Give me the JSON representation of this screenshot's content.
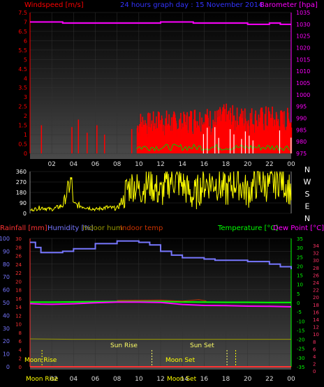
{
  "header": {
    "left_label": "Windspeed [m/s]",
    "title": "24 hours graph day : 15 November 2014",
    "right_label": "Barometer [hpa]"
  },
  "colors": {
    "wind_axis": "#ff0000",
    "baro_axis": "#ff00ff",
    "title": "#3333ff",
    "dir_line": "#ffff00",
    "rain": "#ff3333",
    "humidity": "#7777ff",
    "indoor_hum": "#999900",
    "indoor_temp": "#cc3300",
    "temperature": "#00ff00",
    "dew_point": "#ff00ff",
    "sun": "#ffff66",
    "moon": "#ffff00"
  },
  "x_axis": {
    "ticks": [
      "02",
      "04",
      "06",
      "08",
      "10",
      "12",
      "14",
      "16",
      "18",
      "20",
      "22",
      "00"
    ]
  },
  "panel1": {
    "wind_ticks": [
      "7.5",
      "7",
      "6.5",
      "6",
      "5.5",
      "5",
      "4.5",
      "4",
      "3.5",
      "3",
      "2.5",
      "2",
      "1.5",
      "1",
      "0.5",
      "0"
    ],
    "baro_ticks": [
      "1035",
      "1030",
      "1025",
      "1020",
      "1015",
      "1010",
      "1005",
      "1000",
      "995",
      "990",
      "985",
      "980",
      "975"
    ]
  },
  "panel2": {
    "dir_ticks": [
      "360",
      "270",
      "180",
      "90",
      "0"
    ],
    "compass": [
      "N",
      "W",
      "S",
      "E",
      "N"
    ]
  },
  "panel3": {
    "legend": {
      "rain": "Rainfall [mm]",
      "humidity": "Humidity [%]",
      "indoor_hum": "Indoor hum",
      "indoor_temp": "Indoor temp",
      "temperature": "Temperature [°C]",
      "dew_point": "Dew Point [°C]"
    },
    "left_ticks": [
      "100",
      "90",
      "80",
      "70",
      "60",
      "50",
      "40",
      "30",
      "20",
      "10",
      "0"
    ],
    "rain_ticks": [
      "30",
      "28",
      "26",
      "24",
      "22",
      "20",
      "18",
      "16",
      "14",
      "12",
      "10",
      "8",
      "6",
      "4",
      "2",
      "0"
    ],
    "temp_ticks": [
      "35",
      "30",
      "25",
      "20",
      "15",
      "10",
      "5",
      "0",
      "-5",
      "-10",
      "-15",
      "-20",
      "-25",
      "-30",
      "-35"
    ],
    "dew_ticks": [
      "34",
      "32",
      "30",
      "28",
      "26",
      "24",
      "22",
      "20",
      "18",
      "16",
      "14",
      "12",
      "10",
      "8",
      "6",
      "4",
      "2",
      "0"
    ],
    "annotations": {
      "moon_rise": "Moon Rise",
      "sun_rise": "Sun Rise",
      "moon_set": "Moon Set",
      "sun_set": "Sun Set",
      "moon_rise_axis": "Moon Rise",
      "moon_set_axis": "Moon Set"
    }
  },
  "chart_data": [
    {
      "type": "area",
      "title": "24 hours graph day : 15 November 2014",
      "ylabel": "Windspeed [m/s]",
      "y2label": "Barometer [hpa]",
      "xlim_hours": [
        0,
        24
      ],
      "ylim": [
        0,
        7.5
      ],
      "y2lim": [
        975,
        1035
      ],
      "series": [
        {
          "name": "Windspeed [m/s]",
          "hours": [
            1.0,
            3.8,
            4.4,
            5.2,
            6.1,
            6.8,
            9.3,
            10.0,
            11.0,
            12.0,
            13.0,
            14.0,
            15.0,
            16.0,
            17.0,
            18.0,
            19.0,
            20.0,
            21.0,
            22.0,
            23.0,
            24.0
          ],
          "values": [
            1.5,
            1.4,
            1.8,
            1.1,
            1.5,
            1.0,
            1.3,
            2.3,
            2.2,
            2.4,
            2.3,
            2.2,
            2.6,
            2.5,
            2.4,
            2.7,
            2.5,
            2.6,
            2.5,
            2.6,
            2.4,
            2.5
          ]
        },
        {
          "name": "Barometer [hpa]",
          "hours": [
            0,
            1,
            2,
            3,
            4,
            5,
            6,
            7,
            8,
            9,
            10,
            11,
            12,
            13,
            14,
            15,
            16,
            17,
            18,
            19,
            20,
            21,
            22,
            23,
            24
          ],
          "values": [
            1031,
            1031,
            1031,
            1030.5,
            1030.5,
            1030.5,
            1030.5,
            1030.5,
            1030.5,
            1030.5,
            1030.5,
            1030.5,
            1031,
            1031,
            1031,
            1030.5,
            1030.5,
            1030.5,
            1030.5,
            1030.5,
            1030,
            1030,
            1030.5,
            1030,
            1030
          ]
        }
      ]
    },
    {
      "type": "line",
      "ylim": [
        0,
        360
      ],
      "y_axis_labels": [
        "N",
        "W",
        "S",
        "E",
        "N"
      ],
      "series": [
        {
          "name": "Wind direction",
          "hours": [
            0,
            1,
            2,
            3,
            3.8,
            4,
            5,
            6,
            7,
            8,
            8.6,
            9,
            9.5,
            10,
            11,
            12,
            13,
            14,
            15,
            16,
            17,
            18,
            19,
            20,
            21,
            22,
            23,
            24
          ],
          "values": [
            30,
            60,
            40,
            80,
            340,
            90,
            70,
            40,
            60,
            50,
            150,
            220,
            250,
            200,
            260,
            170,
            300,
            250,
            140,
            260,
            270,
            190,
            280,
            180,
            280,
            230,
            300,
            200
          ]
        }
      ]
    },
    {
      "type": "line",
      "xlim_hours": [
        0,
        24
      ],
      "series": [
        {
          "name": "Humidity [%]",
          "hours": [
            0,
            0.5,
            1,
            2,
            3,
            4,
            6,
            8,
            10,
            11,
            12,
            13,
            14,
            15,
            16,
            17,
            18,
            19,
            20,
            21,
            22,
            23,
            24
          ],
          "values": [
            97,
            93,
            89,
            89,
            90,
            92,
            96,
            98,
            97,
            95,
            90,
            87,
            85,
            85,
            84,
            83,
            83,
            83,
            82,
            82,
            80,
            78,
            76
          ]
        },
        {
          "name": "Temperature [°C]",
          "hours": [
            0,
            2,
            4,
            6,
            8,
            10,
            12,
            14,
            16,
            18,
            20,
            22,
            24
          ],
          "values": [
            0.3,
            0.3,
            0.4,
            0.5,
            0.6,
            0.6,
            0.6,
            0.4,
            0.3,
            0.2,
            0.2,
            0.1,
            0.1
          ]
        },
        {
          "name": "Dew Point [°C]",
          "hours": [
            0,
            1,
            2,
            4,
            6,
            8,
            10,
            12,
            14,
            16,
            18,
            20,
            22,
            24
          ],
          "values": [
            -0.5,
            -0.8,
            -0.9,
            -0.6,
            -0.1,
            0.3,
            0.3,
            0.1,
            -1.0,
            -1.5,
            -1.6,
            -1.9,
            -2.0,
            -2.3
          ]
        },
        {
          "name": "Indoor hum",
          "hours": [
            0,
            4,
            8,
            12,
            16,
            20,
            24
          ],
          "values": [
            -19.8,
            -20,
            -20,
            -20,
            -20,
            -20,
            -20
          ]
        },
        {
          "name": "Rainfall [mm]",
          "hours": [
            0,
            24
          ],
          "values": [
            0,
            0
          ]
        }
      ]
    }
  ]
}
